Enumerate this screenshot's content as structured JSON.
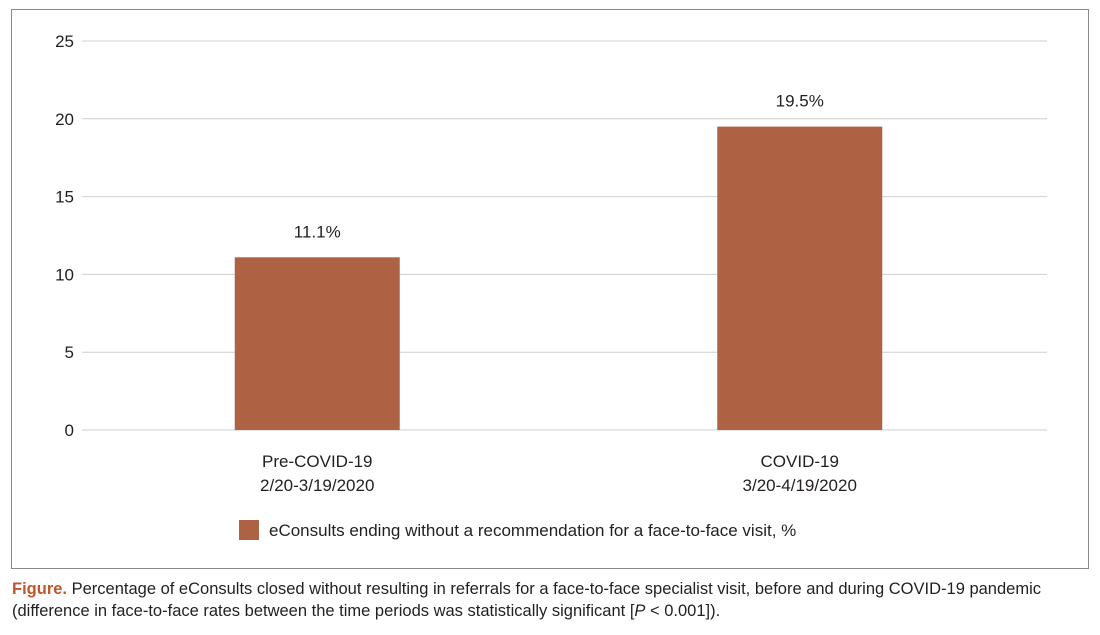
{
  "chart_data": {
    "type": "bar",
    "categories": [
      [
        "Pre-COVID-19",
        "2/20-3/19/2020"
      ],
      [
        "COVID-19",
        "3/20-4/19/2020"
      ]
    ],
    "series": [
      {
        "name": "eConsults ending without a recommendation for a face-to-face visit, %",
        "values": [
          11.1,
          19.5
        ],
        "labels": [
          "11.1%",
          "19.5%"
        ],
        "color": "#ad6343"
      }
    ],
    "ylim": [
      0,
      25
    ],
    "yticks": [
      0,
      5,
      10,
      15,
      20,
      25
    ],
    "grid": true,
    "legend": "bottom-center"
  },
  "caption": {
    "label": "Figure.",
    "text_before_p": " Percentage of eConsults closed without resulting in referrals for a face-to-face specialist visit, before and during COVID-19 pandemic (difference in face-to-face rates between the time periods was statistically significant [",
    "p_symbol": "P",
    "text_after_p": " < 0.001])."
  },
  "colors": {
    "gridline": "#cfcfcf",
    "caption_label": "#c0562b"
  }
}
